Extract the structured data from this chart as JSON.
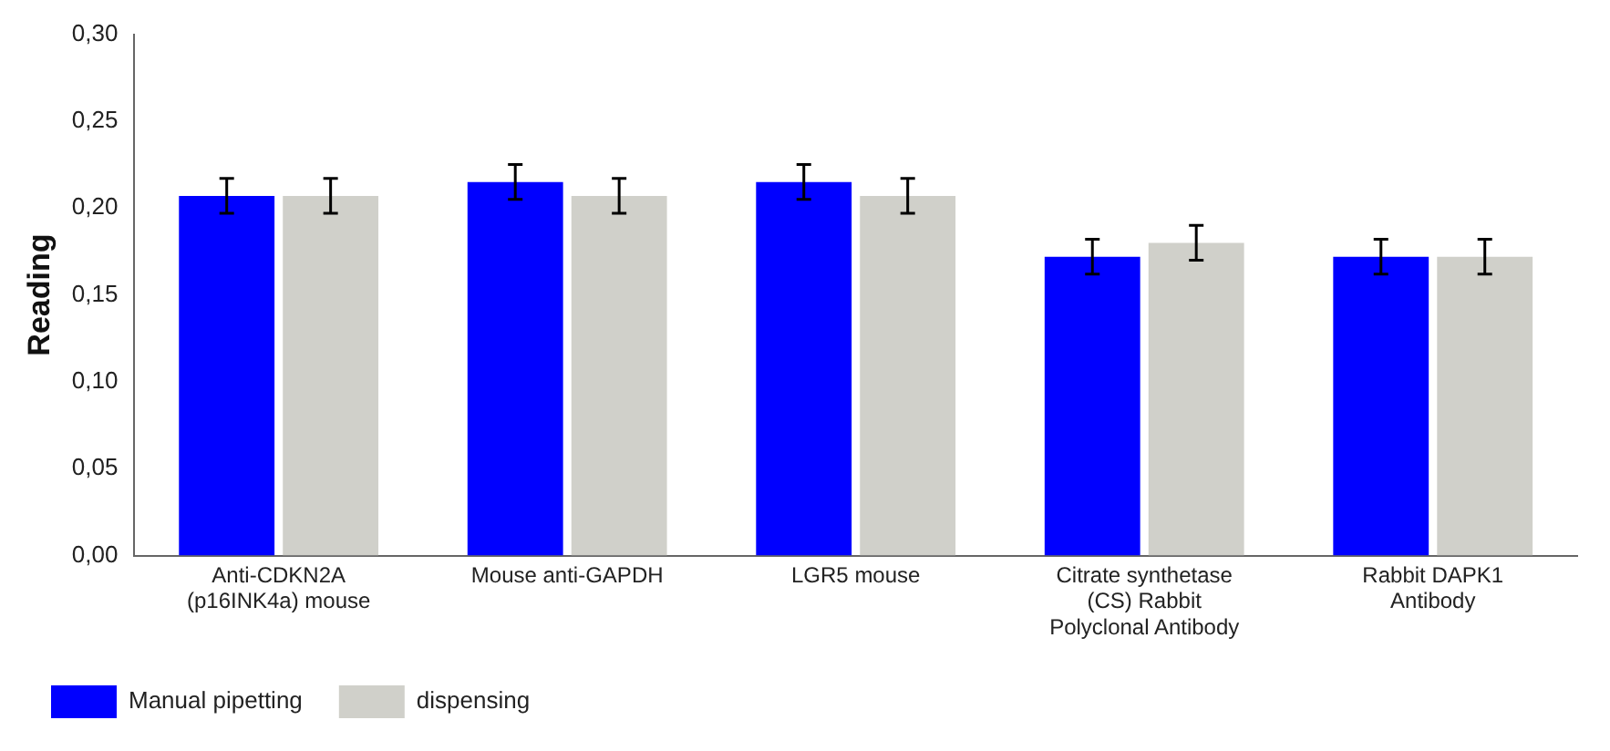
{
  "chart_data": {
    "type": "bar",
    "ylabel": "Reading",
    "categories": [
      "Anti-CDKN2A (p16INK4a) mouse",
      "Mouse anti-GAPDH",
      "LGR5 mouse",
      "Citrate synthetase (CS) Rabbit Polyclonal Antibody",
      "Rabbit DAPK1 Antibody"
    ],
    "series": [
      {
        "name": "Manual pipetting",
        "color": "#0000ff",
        "values": [
          0.207,
          0.215,
          0.215,
          0.172,
          0.172
        ],
        "errors": [
          0.01,
          0.01,
          0.01,
          0.01,
          0.01
        ]
      },
      {
        "name": "dispensing",
        "color": "#d0d0ca",
        "values": [
          0.207,
          0.207,
          0.207,
          0.18,
          0.172
        ],
        "errors": [
          0.01,
          0.01,
          0.01,
          0.01,
          0.01
        ]
      }
    ],
    "ylim": [
      0,
      0.3
    ],
    "yticks": [
      {
        "value": 0,
        "label": "0,00"
      },
      {
        "value": 0.05,
        "label": "0,05"
      },
      {
        "value": 0.1,
        "label": "0,10"
      },
      {
        "value": 0.15,
        "label": "0,15"
      },
      {
        "value": 0.2,
        "label": "0,20"
      },
      {
        "value": 0.25,
        "label": "0,25"
      },
      {
        "value": 0.3,
        "label": "0,30"
      }
    ],
    "grid": false,
    "legend": "bottom"
  }
}
